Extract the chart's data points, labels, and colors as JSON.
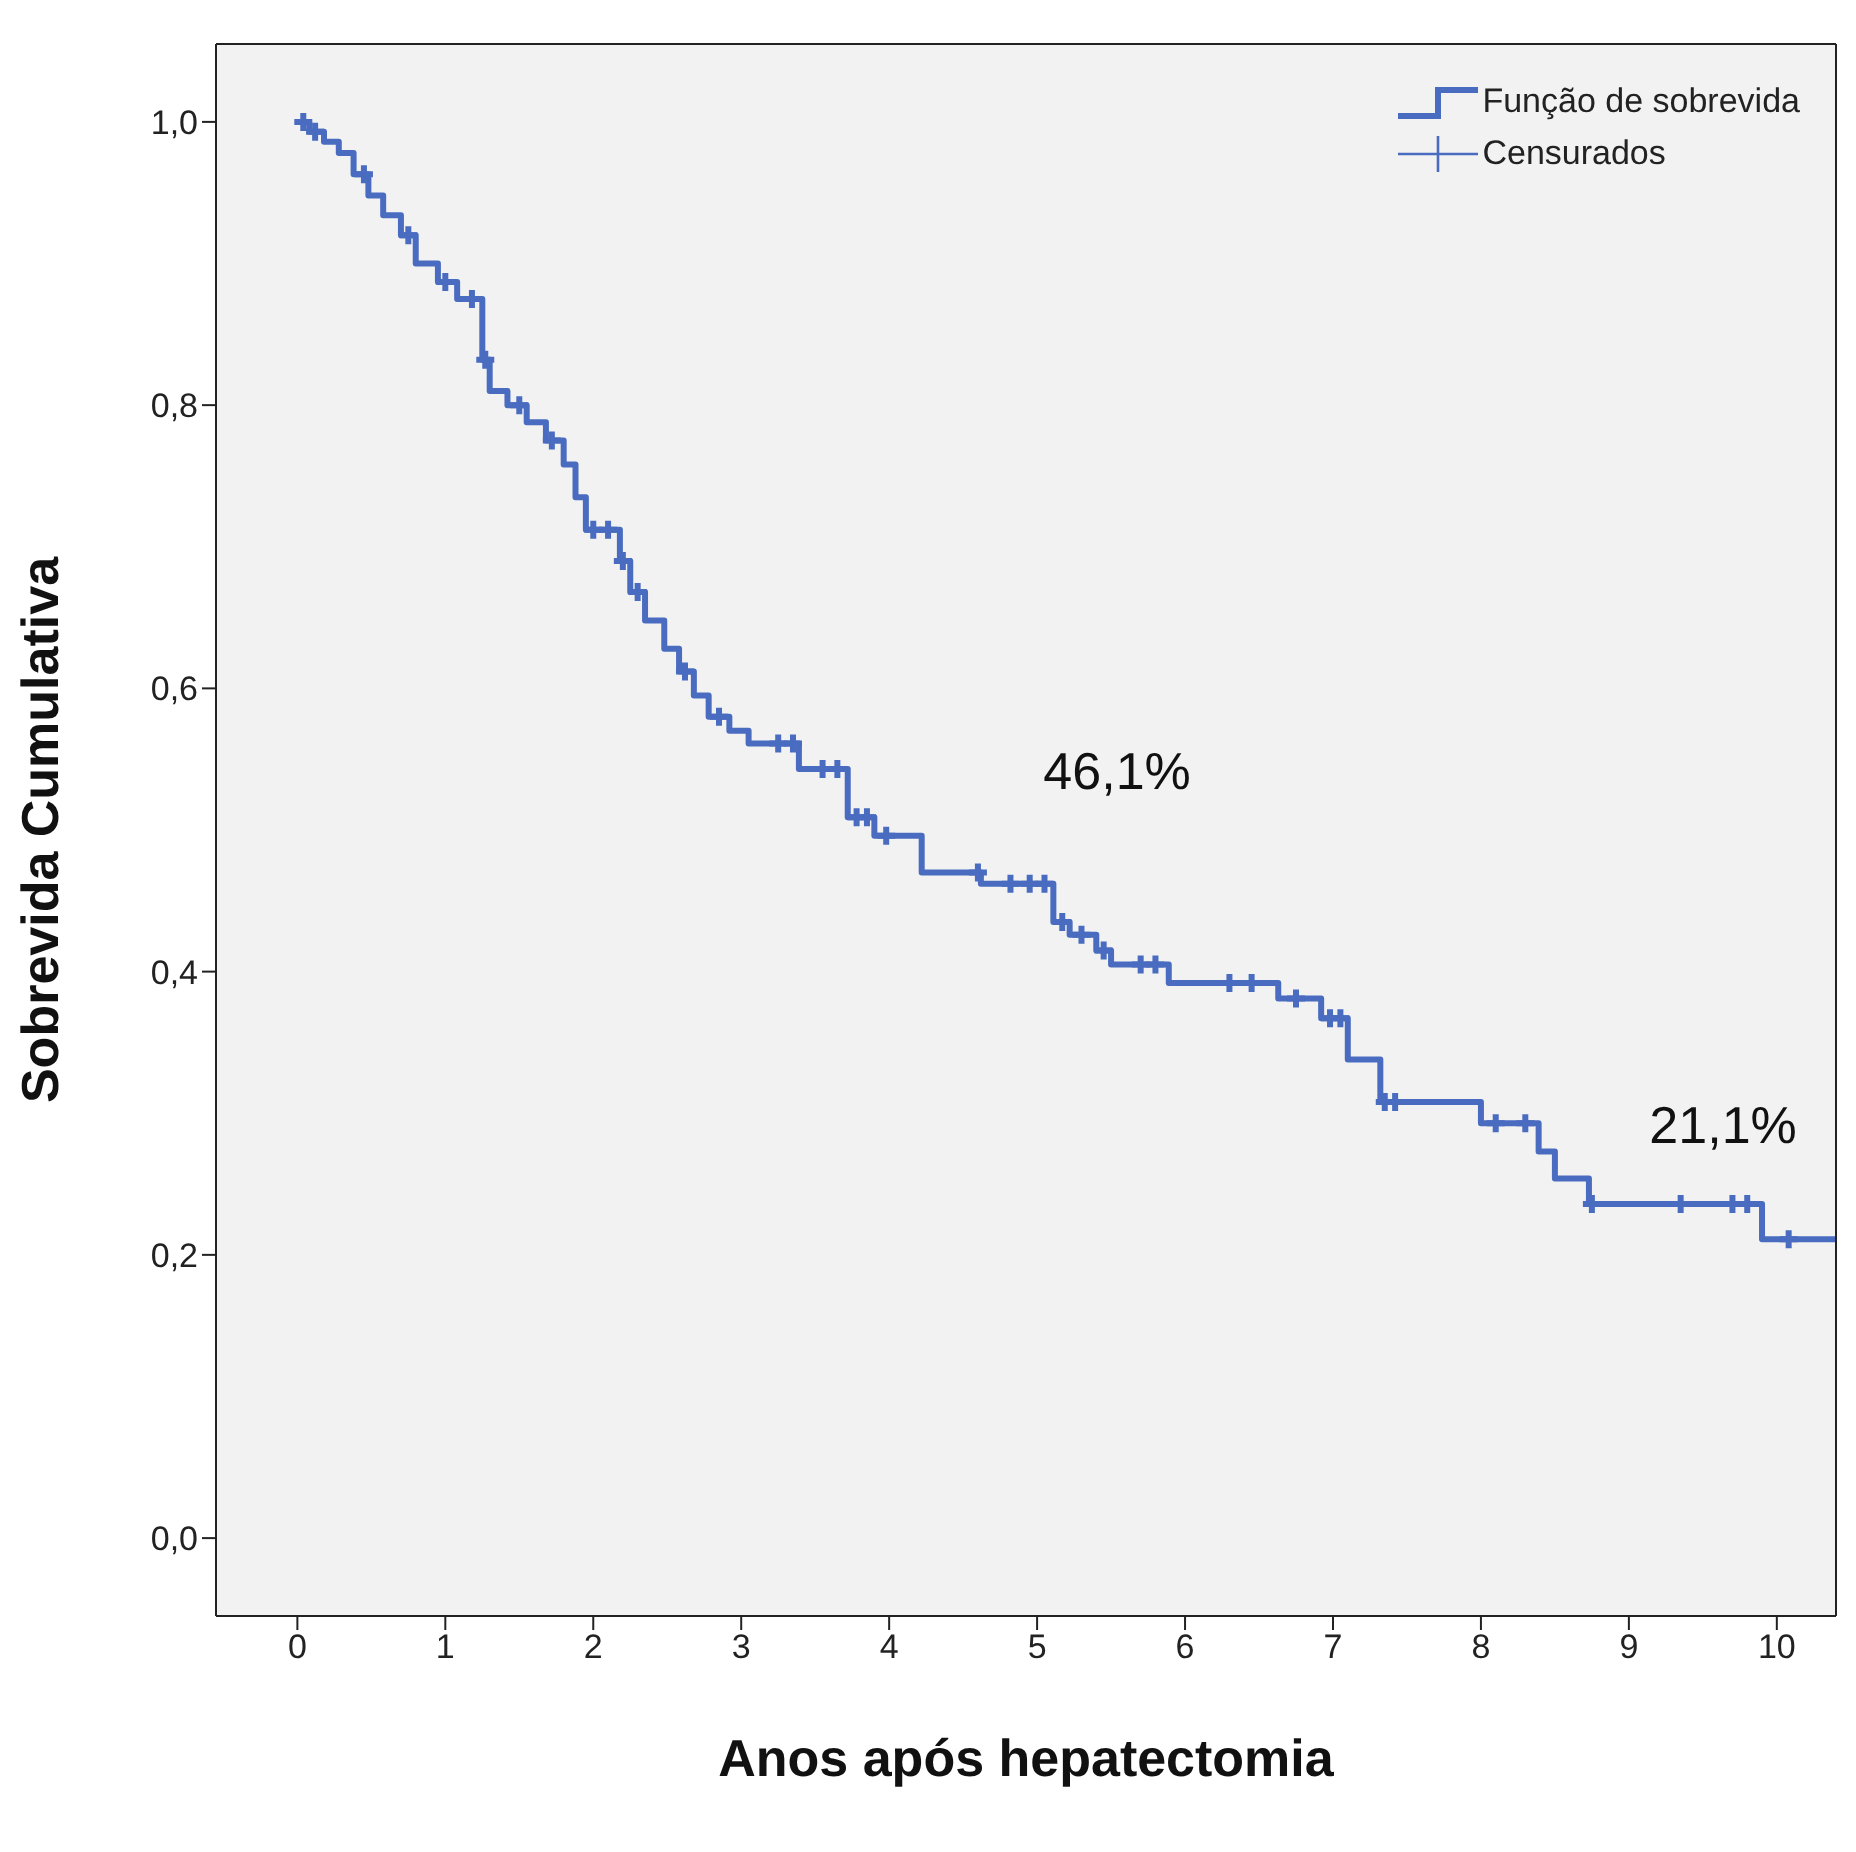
{
  "chart_data": {
    "type": "step",
    "xlabel": "Anos após hepatectomia",
    "ylabel": "Sobrevida Cumulativa",
    "xlim": [
      -0.55,
      10.4
    ],
    "xticks": [
      0,
      1,
      2,
      3,
      4,
      5,
      6,
      7,
      8,
      9,
      10
    ],
    "ylim": [
      -0.055,
      1.055
    ],
    "yticks": [
      {
        "value": 0,
        "label": "0,0"
      },
      {
        "value": 0.2,
        "label": "0,2"
      },
      {
        "value": 0.4,
        "label": "0,4"
      },
      {
        "value": 0.6,
        "label": "0,6"
      },
      {
        "value": 0.8,
        "label": "0,8"
      },
      {
        "value": 1,
        "label": "1,0"
      }
    ],
    "grid": false,
    "legend": "top right",
    "line_style": "solid",
    "series": [
      {
        "name": "Função de sobrevida",
        "color": "#4a6cc0",
        "marker": "none",
        "x": [
          0,
          0.08,
          0.18,
          0.28,
          0.38,
          0.48,
          0.58,
          0.7,
          0.8,
          0.95,
          1.08,
          1.25,
          1.3,
          1.42,
          1.55,
          1.68,
          1.8,
          1.88,
          1.95,
          2.18,
          2.25,
          2.35,
          2.48,
          2.58,
          2.68,
          2.78,
          2.92,
          3.05,
          3.39,
          3.72,
          3.9,
          4.22,
          4.62,
          5.11,
          5.22,
          5.4,
          5.5,
          5.89,
          6.63,
          6.92,
          7.1,
          7.32,
          8.0,
          8.39,
          8.5,
          8.73,
          9.9,
          10.4
        ],
        "values": [
          1.0,
          0.993,
          0.986,
          0.978,
          0.963,
          0.948,
          0.934,
          0.92,
          0.9,
          0.887,
          0.875,
          0.832,
          0.81,
          0.8,
          0.788,
          0.775,
          0.758,
          0.735,
          0.712,
          0.69,
          0.668,
          0.648,
          0.628,
          0.612,
          0.595,
          0.58,
          0.57,
          0.561,
          0.543,
          0.509,
          0.496,
          0.47,
          0.462,
          0.435,
          0.426,
          0.415,
          0.405,
          0.392,
          0.381,
          0.367,
          0.338,
          0.308,
          0.293,
          0.273,
          0.254,
          0.236,
          0.211,
          0.211
        ]
      },
      {
        "name": "Censurados",
        "type": "scatter",
        "color": "#4a6cc0",
        "marker": "cross",
        "x": [
          0.04,
          0.12,
          0.45,
          0.75,
          1.0,
          1.18,
          1.27,
          1.5,
          1.72,
          2.0,
          2.1,
          2.2,
          2.3,
          2.62,
          2.85,
          3.25,
          3.35,
          3.55,
          3.65,
          3.78,
          3.85,
          3.98,
          4.6,
          4.82,
          4.95,
          5.05,
          5.17,
          5.3,
          5.45,
          5.7,
          5.8,
          6.3,
          6.45,
          6.75,
          6.98,
          7.05,
          7.35,
          7.42,
          8.1,
          8.3,
          8.75,
          9.35,
          9.7,
          9.8,
          10.08
        ],
        "values": [
          1.0,
          0.993,
          0.963,
          0.92,
          0.887,
          0.875,
          0.832,
          0.8,
          0.775,
          0.712,
          0.712,
          0.69,
          0.668,
          0.612,
          0.58,
          0.561,
          0.561,
          0.543,
          0.543,
          0.509,
          0.509,
          0.496,
          0.47,
          0.462,
          0.462,
          0.462,
          0.435,
          0.426,
          0.415,
          0.405,
          0.405,
          0.392,
          0.392,
          0.381,
          0.367,
          0.367,
          0.308,
          0.308,
          0.293,
          0.293,
          0.236,
          0.236,
          0.236,
          0.236,
          0.211
        ]
      }
    ],
    "annotations": [
      {
        "text": "46,1%",
        "x": 5,
        "y": 0.461
      },
      {
        "text": "21,1%",
        "x": 10,
        "y": 0.211
      }
    ]
  }
}
